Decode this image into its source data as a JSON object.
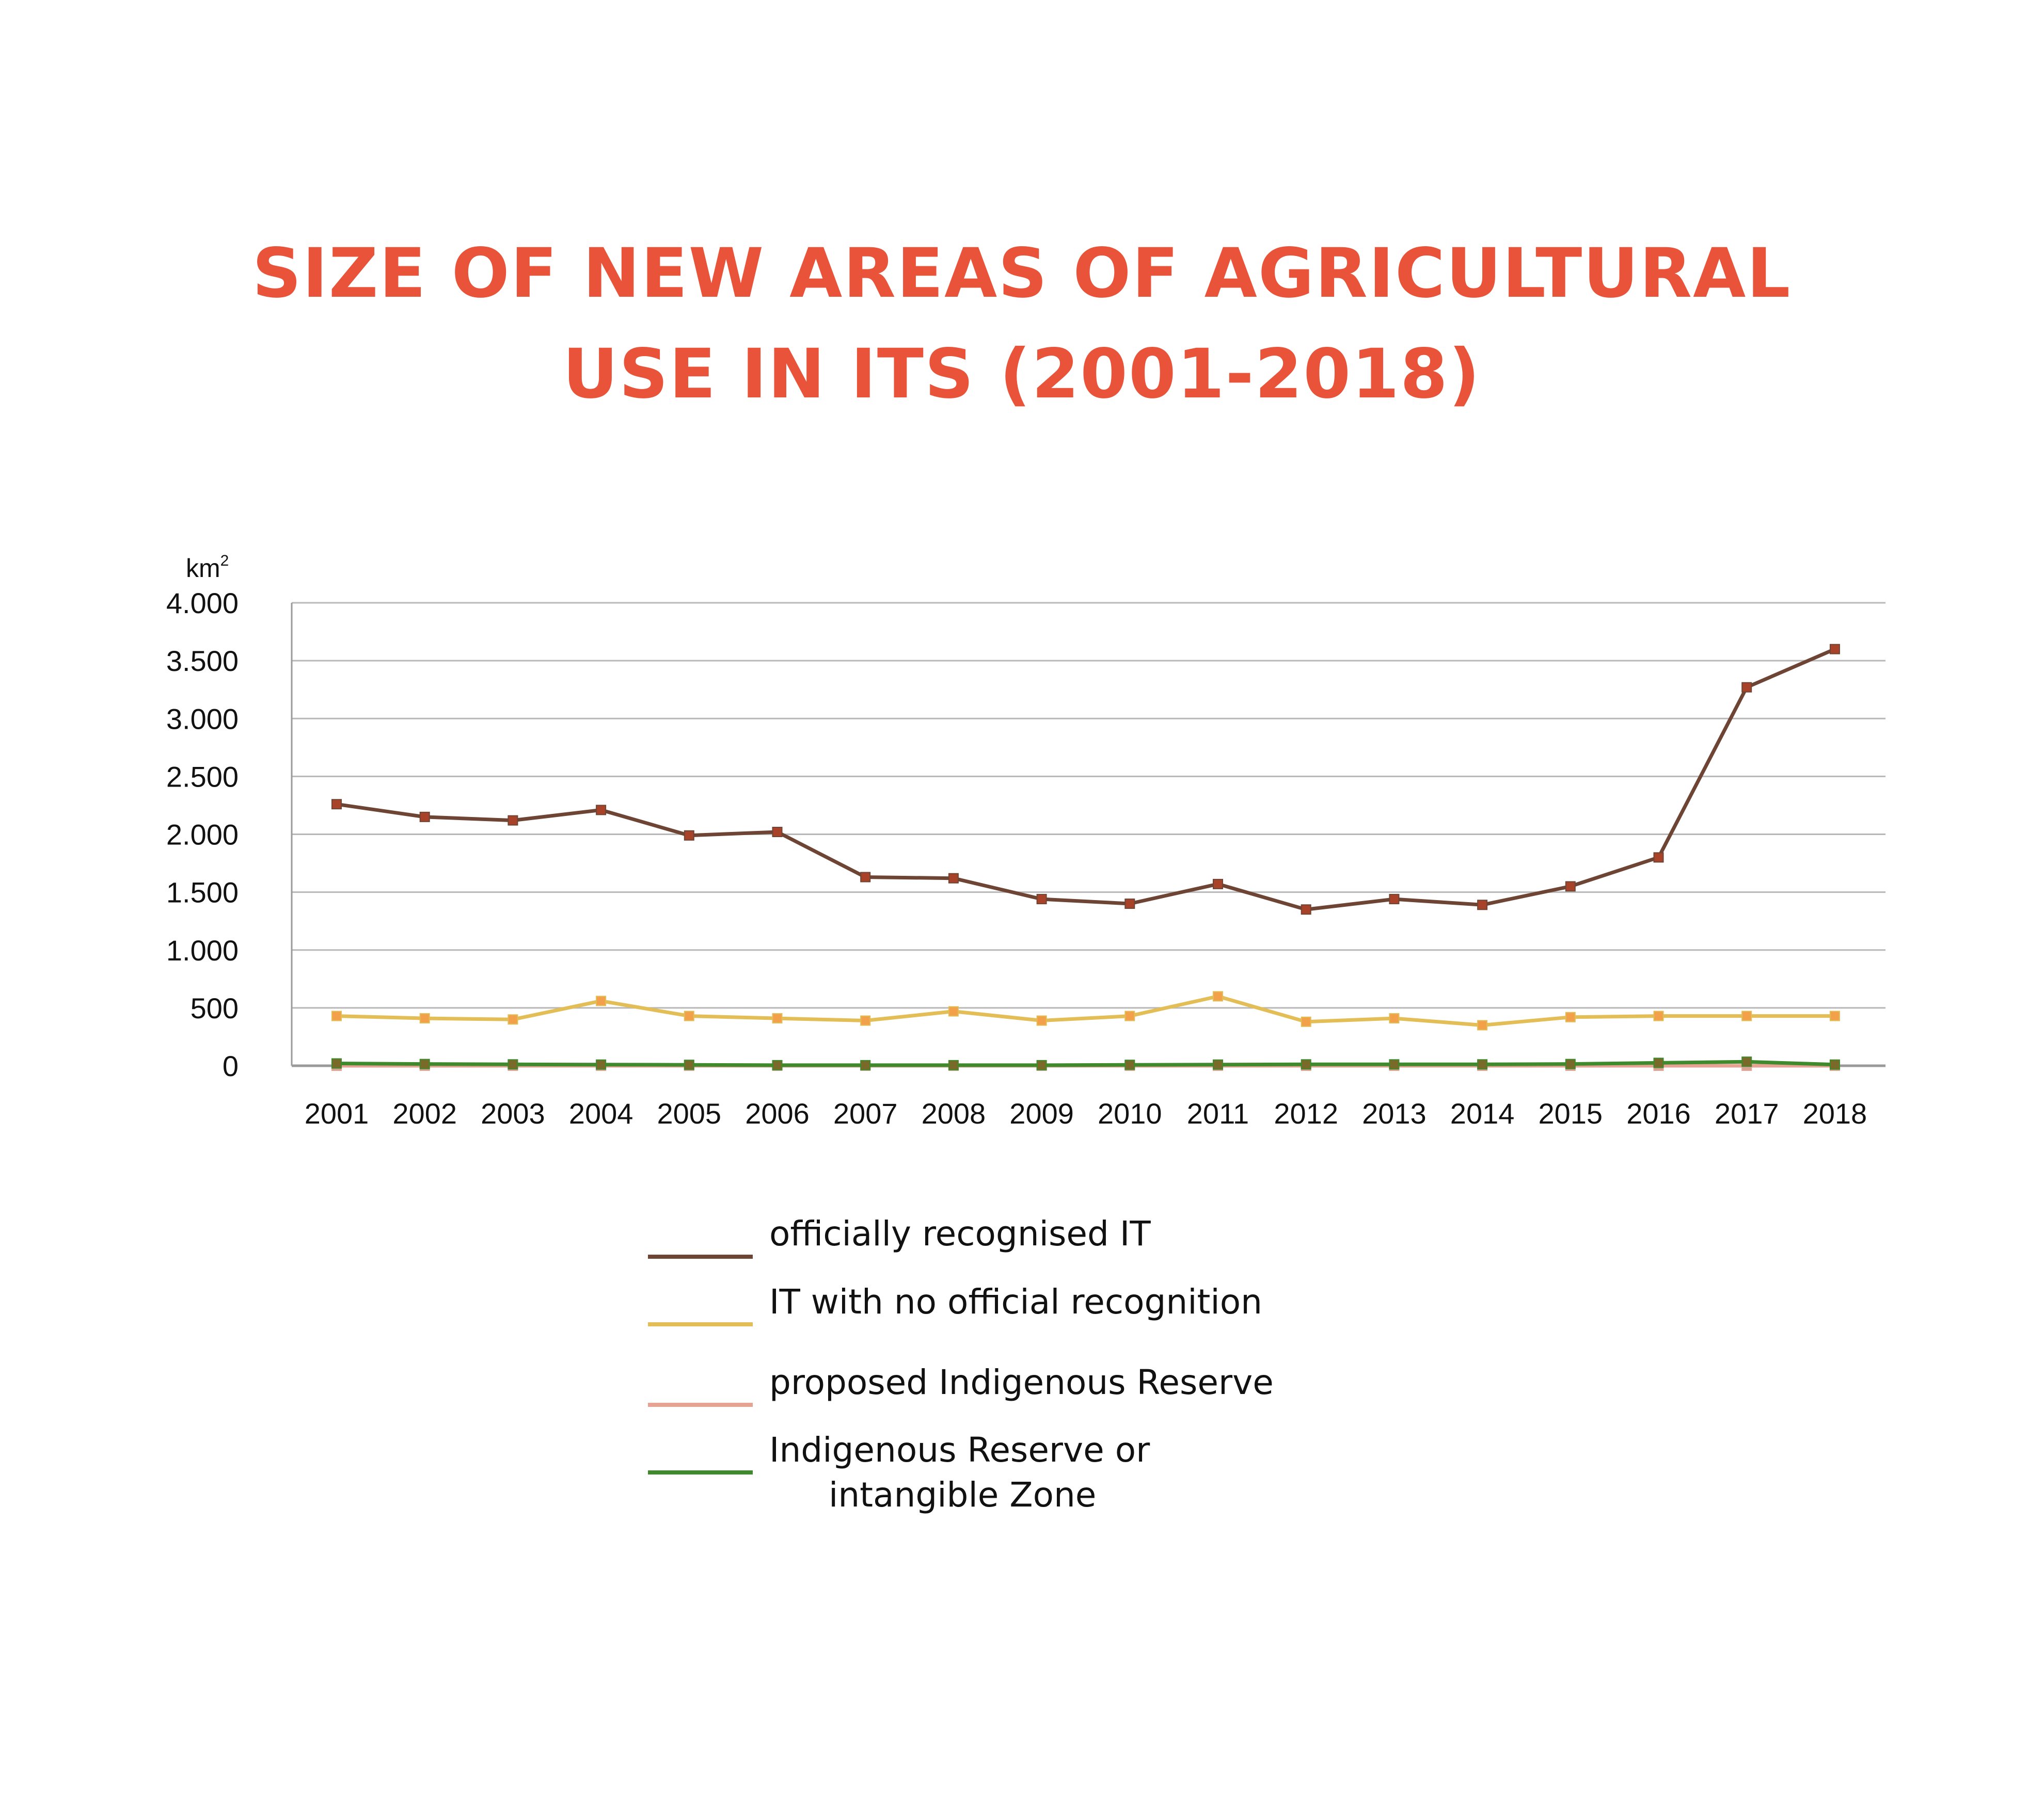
{
  "colors": {
    "title": "#e8533a",
    "grid": "#b8b8b8",
    "axis": "#9a9a9a",
    "series": [
      "#6e4534",
      "#e3bd55",
      "#e6a394",
      "#3f8a2c"
    ],
    "markers": [
      "#a8432a",
      "#f2a04a",
      "#d7a090",
      "#7a6a2a"
    ]
  },
  "chart_data": {
    "type": "line",
    "title_lines": [
      "SIZE OF NEW AREAS OF AGRICULTURAL",
      "USE IN ITS (2001-2018)"
    ],
    "y_unit": "km",
    "y_unit_sup": "2",
    "ylim": [
      0,
      4000
    ],
    "y_ticks": [
      {
        "value": 0,
        "label": "0"
      },
      {
        "value": 500,
        "label": "500"
      },
      {
        "value": 1000,
        "label": "1.000"
      },
      {
        "value": 1500,
        "label": "1.500"
      },
      {
        "value": 2000,
        "label": "2.000"
      },
      {
        "value": 2500,
        "label": "2.500"
      },
      {
        "value": 3000,
        "label": "3.000"
      },
      {
        "value": 3500,
        "label": "3.500"
      },
      {
        "value": 4000,
        "label": "4.000"
      }
    ],
    "grid": true,
    "legend_position": "bottom-center",
    "categories": [
      "2001",
      "2002",
      "2003",
      "2004",
      "2005",
      "2006",
      "2007",
      "2008",
      "2009",
      "2010",
      "2011",
      "2012",
      "2013",
      "2014",
      "2015",
      "2016",
      "2017",
      "2018"
    ],
    "series": [
      {
        "name": "officially recognised IT",
        "values": [
          2260,
          2150,
          2120,
          2210,
          1990,
          2020,
          1630,
          1620,
          1440,
          1400,
          1570,
          1350,
          1440,
          1390,
          1550,
          1800,
          3270,
          3600
        ]
      },
      {
        "name": "IT with no official recognition",
        "values": [
          430,
          410,
          400,
          560,
          430,
          410,
          390,
          470,
          390,
          430,
          600,
          380,
          410,
          350,
          420,
          430,
          430,
          430
        ]
      },
      {
        "name": "proposed Indigenous Reserve",
        "values": [
          0,
          0,
          0,
          0,
          0,
          0,
          0,
          0,
          0,
          0,
          0,
          0,
          0,
          0,
          0,
          0,
          0,
          0
        ]
      },
      {
        "name": "Indigenous Reserve or",
        "name_line2": "intangible Zone",
        "values": [
          20,
          15,
          12,
          10,
          8,
          5,
          5,
          5,
          5,
          8,
          10,
          12,
          12,
          12,
          15,
          25,
          35,
          10
        ]
      }
    ]
  }
}
